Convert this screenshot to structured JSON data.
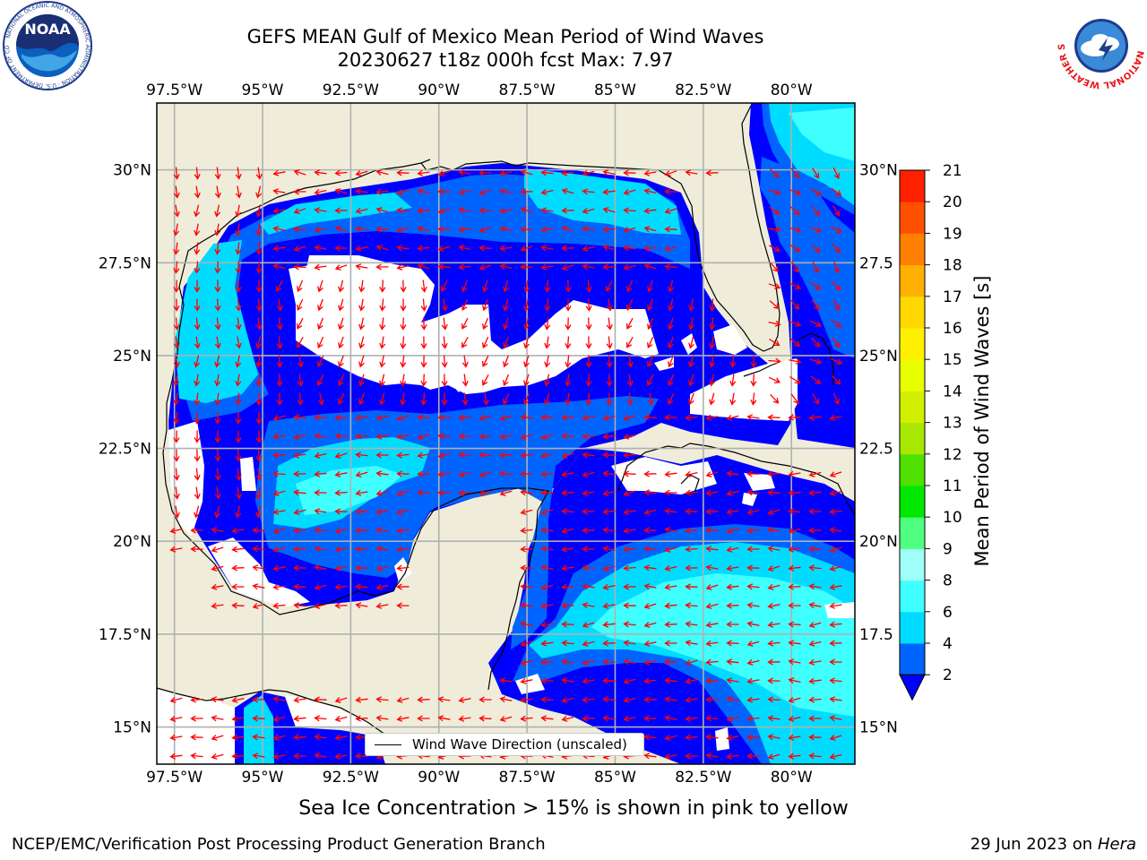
{
  "title": {
    "line1": "GEFS MEAN Gulf of Mexico Mean Period of Wind Waves",
    "line2": "20230627 t18z 000h fcst   Max: 7.97"
  },
  "logos": {
    "left": "NOAA",
    "left_ring": "NATIONAL OCEANIC AND ATMOSPHERIC ADMINISTRATION · U.S. DEPARTMENT OF COMMERCE",
    "right_ring": "NATIONAL WEATHER SERVICE"
  },
  "map": {
    "lon_labels": [
      "97.5°W",
      "95°W",
      "92.5°W",
      "90°W",
      "87.5°W",
      "85°W",
      "82.5°W",
      "80°W"
    ],
    "lat_labels_left": [
      "30°N",
      "27.5°N",
      "25°N",
      "22.5°N",
      "20°N",
      "17.5°N",
      "15°N"
    ],
    "lat_labels_right": [
      "30°N",
      "27.5",
      "25°N",
      "22.5",
      "20°N",
      "17.5",
      "15°N"
    ],
    "lon_values": [
      -97.5,
      -95,
      -92.5,
      -90,
      -87.5,
      -85,
      -82.5,
      -80
    ],
    "lat_values": [
      30,
      27.5,
      25,
      22.5,
      20,
      17.5,
      15
    ],
    "extent": {
      "lon_min": -98,
      "lon_max": -78.2,
      "lat_min": 14.0,
      "lat_max": 31.8
    },
    "colors": {
      "land": "#efedda",
      "water_zero": "#ffffff",
      "arrow": "#ff0000",
      "grid": "#b0b0b0"
    },
    "legend_label": "Wind Wave Direction (unscaled)"
  },
  "colorbar": {
    "label": "Mean Period of Wind Waves [s]",
    "ticks": [
      "2",
      "4",
      "6",
      "8",
      "9",
      "10",
      "11",
      "12",
      "13",
      "14",
      "15",
      "16",
      "17",
      "18",
      "19",
      "20",
      "21"
    ],
    "bounds": [
      2,
      4,
      6,
      8,
      9,
      10,
      11,
      12,
      13,
      14,
      15,
      16,
      17,
      18,
      19,
      20,
      21
    ],
    "colors": [
      "#0064ff",
      "#00dcff",
      "#40ffff",
      "#9ffff8",
      "#50ff80",
      "#00e800",
      "#50e000",
      "#a8e800",
      "#d0f000",
      "#e8ff00",
      "#fff000",
      "#ffd800",
      "#ffb000",
      "#ff8000",
      "#ff5000",
      "#ff2000"
    ],
    "under_color": "#0000ff",
    "extend": "min"
  },
  "footer": {
    "ice_note": "Sea Ice Concentration > 15% is shown in pink to yellow",
    "credit": "NCEP/EMC/Verification Post Processing Product Generation Branch",
    "date": "29 Jun 2023 on",
    "host": "Hera"
  }
}
